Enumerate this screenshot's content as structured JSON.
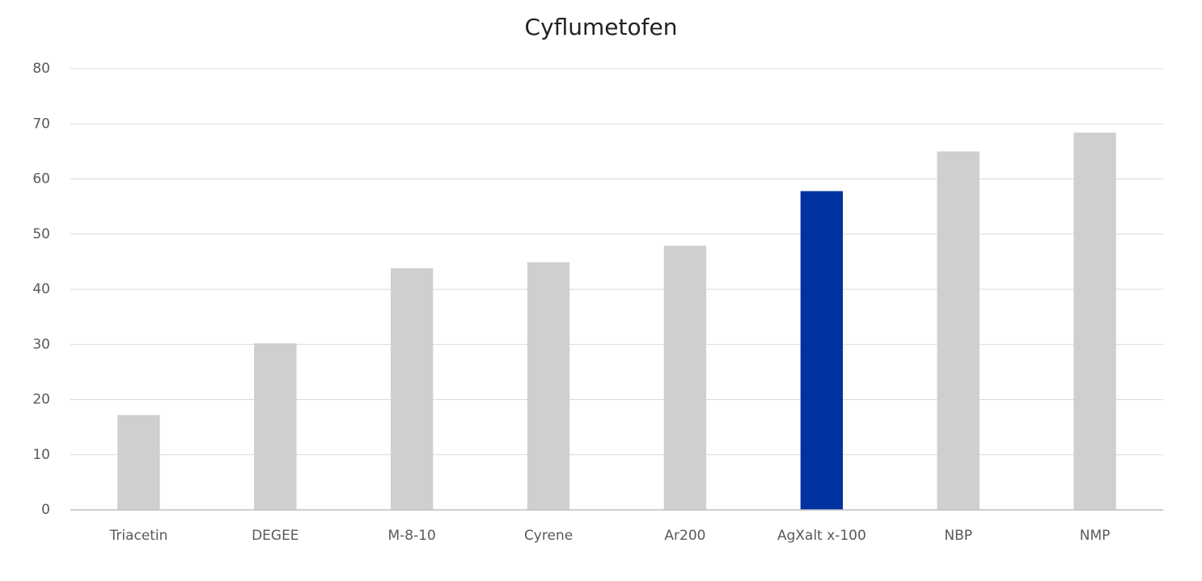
{
  "chart_data": {
    "type": "bar",
    "title": "Cyflumetofen",
    "categories": [
      "Triacetin",
      "DEGEE",
      "M-8-10",
      "Cyrene",
      "Ar200",
      "AgXalt x-100",
      "NBP",
      "NMP"
    ],
    "values": [
      17.2,
      30.2,
      43.8,
      44.9,
      47.9,
      57.8,
      65,
      68.4
    ],
    "colors": [
      "#d0cece",
      "#d0cece",
      "#d0cece",
      "#d0cece",
      "#d0cece",
      "#0033a0",
      "#d0cece",
      "#d0cece"
    ],
    "ylim": [
      0,
      80
    ],
    "yticks": [
      0,
      10,
      20,
      30,
      40,
      50,
      60,
      70,
      80
    ],
    "grid": true
  }
}
